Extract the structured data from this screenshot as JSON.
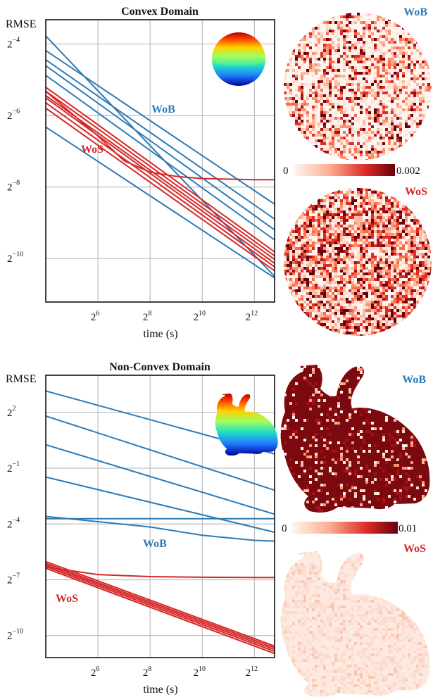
{
  "colors": {
    "wob": "#2c7bb6",
    "wos": "#d62728",
    "grid": "#bdbdbd"
  },
  "chart_data": [
    {
      "type": "line",
      "title": "Convex Domain",
      "ylabel": "RMSE",
      "xlabel": "time (s)",
      "x_scale": "log2",
      "y_scale": "log2",
      "xlim": [
        16,
        7000
      ],
      "ylim": [
        0.00042,
        0.1
      ],
      "x_ticks": [
        {
          "base": "2",
          "exp": "6"
        },
        {
          "base": "2",
          "exp": "8"
        },
        {
          "base": "2",
          "exp": "10"
        },
        {
          "base": "2",
          "exp": "12"
        }
      ],
      "y_ticks": [
        {
          "base": "2",
          "exp": "−4"
        },
        {
          "base": "2",
          "exp": "−6"
        },
        {
          "base": "2",
          "exp": "−8"
        },
        {
          "base": "2",
          "exp": "−10"
        }
      ],
      "annotations": {
        "wob": "WoB",
        "wos": "WoS"
      },
      "series": [
        {
          "group": "WoB",
          "x": [
            16,
            7000
          ],
          "y": [
            0.073,
            0.00069
          ]
        },
        {
          "group": "WoB",
          "x": [
            16,
            7000
          ],
          "y": [
            0.055,
            0.0028
          ]
        },
        {
          "group": "WoB",
          "x": [
            16,
            7000
          ],
          "y": [
            0.046,
            0.0021
          ]
        },
        {
          "group": "WoB",
          "x": [
            16,
            7000
          ],
          "y": [
            0.041,
            0.0017
          ]
        },
        {
          "group": "WoB",
          "x": [
            16,
            7000
          ],
          "y": [
            0.034,
            0.0014
          ]
        },
        {
          "group": "WoB",
          "x": [
            16,
            7000
          ],
          "y": [
            0.0125,
            0.00067
          ]
        },
        {
          "group": "WoS",
          "x": [
            16,
            7000
          ],
          "y": [
            0.027,
            0.00111
          ]
        },
        {
          "group": "WoS",
          "x": [
            16,
            7000
          ],
          "y": [
            0.025,
            0.00103
          ]
        },
        {
          "group": "WoS",
          "x": [
            16,
            7000
          ],
          "y": [
            0.023,
            0.00096
          ]
        },
        {
          "group": "WoS",
          "x": [
            16,
            7000
          ],
          "y": [
            0.022,
            0.00089
          ]
        },
        {
          "group": "WoS",
          "x": [
            16,
            7000
          ],
          "y": [
            0.02,
            0.00083
          ]
        },
        {
          "group": "WoS",
          "x": [
            16,
            7000
          ],
          "y": [
            0.018,
            0.00077
          ]
        },
        {
          "group": "WoS",
          "x": [
            16,
            64,
            128,
            256,
            512,
            1024,
            4096,
            7000
          ],
          "y": [
            0.025,
            0.0105,
            0.0065,
            0.0052,
            0.0048,
            0.0046,
            0.0045,
            0.0045
          ]
        }
      ]
    },
    {
      "type": "line",
      "title": "Non-Convex Domain",
      "ylabel": "RMSE",
      "xlabel": "time (s)",
      "x_scale": "log2",
      "y_scale": "log2",
      "xlim": [
        16,
        7000
      ],
      "ylim": [
        0.00043,
        16
      ],
      "x_ticks": [
        {
          "base": "2",
          "exp": "6"
        },
        {
          "base": "2",
          "exp": "8"
        },
        {
          "base": "2",
          "exp": "10"
        },
        {
          "base": "2",
          "exp": "12"
        }
      ],
      "y_ticks": [
        {
          "base": "2",
          "exp": "2"
        },
        {
          "base": "2",
          "exp": "−1"
        },
        {
          "base": "2",
          "exp": "−4"
        },
        {
          "base": "2",
          "exp": "−7"
        },
        {
          "base": "2",
          "exp": "−10"
        }
      ],
      "annotations": {
        "wob": "WoB",
        "wos": "WoS"
      },
      "series": [
        {
          "group": "WoB",
          "x": [
            16,
            7000
          ],
          "y": [
            8.9,
            0.85
          ]
        },
        {
          "group": "WoB",
          "x": [
            16,
            7000
          ],
          "y": [
            3.5,
            0.22
          ]
        },
        {
          "group": "WoB",
          "x": [
            16,
            7000
          ],
          "y": [
            1.2,
            0.09
          ]
        },
        {
          "group": "WoB",
          "x": [
            16,
            7000
          ],
          "y": [
            0.36,
            0.046
          ]
        },
        {
          "group": "WoB",
          "x": [
            16,
            7000
          ],
          "y": [
            0.076,
            0.076
          ]
        },
        {
          "group": "WoB",
          "x": [
            16,
            256,
            1024,
            4096,
            7000
          ],
          "y": [
            0.083,
            0.056,
            0.041,
            0.034,
            0.033
          ]
        },
        {
          "group": "WoS",
          "x": [
            16,
            7000
          ],
          "y": [
            0.0154,
            0.00066
          ]
        },
        {
          "group": "WoS",
          "x": [
            16,
            7000
          ],
          "y": [
            0.0144,
            0.00062
          ]
        },
        {
          "group": "WoS",
          "x": [
            16,
            7000
          ],
          "y": [
            0.0136,
            0.00058
          ]
        },
        {
          "group": "WoS",
          "x": [
            16,
            7000
          ],
          "y": [
            0.0128,
            0.00054
          ]
        },
        {
          "group": "WoS",
          "x": [
            16,
            7000
          ],
          "y": [
            0.012,
            0.0005
          ]
        },
        {
          "group": "WoS",
          "x": [
            16,
            64,
            256,
            1024,
            4096,
            7000
          ],
          "y": [
            0.0125,
            0.0095,
            0.0088,
            0.0086,
            0.0085,
            0.0085
          ]
        }
      ]
    }
  ],
  "heatmaps": {
    "convex": {
      "wob_label": "WoB",
      "wos_label": "WoS",
      "scale_min": "0",
      "scale_max": "0.002"
    },
    "nonconvex": {
      "wob_label": "WoB",
      "wos_label": "WoS",
      "scale_min": "0",
      "scale_max": "0.01"
    }
  }
}
